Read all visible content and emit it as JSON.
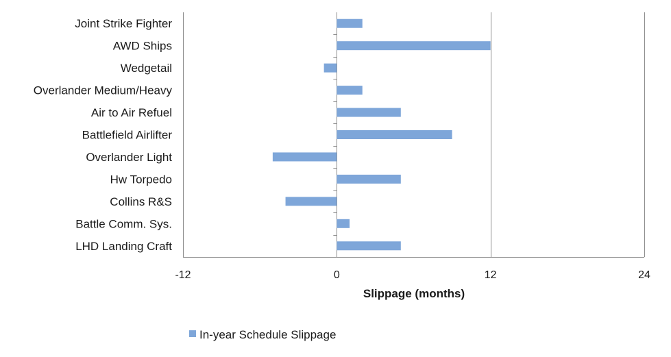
{
  "chart_data": {
    "type": "bar",
    "orientation": "horizontal",
    "categories": [
      "Joint Strike Fighter",
      "AWD Ships",
      "Wedgetail",
      "Overlander Medium/Heavy",
      "Air to Air Refuel",
      "Battlefield Airlifter",
      "Overlander Light",
      "Hw Torpedo",
      "Collins R&S",
      "Battle Comm. Sys.",
      "LHD Landing Craft"
    ],
    "series": [
      {
        "name": "In-year Schedule Slippage",
        "values": [
          2,
          12,
          -1,
          2,
          5,
          9,
          -5,
          5,
          -4,
          1,
          5
        ],
        "color": "#7ea6d9"
      }
    ],
    "xlabel": "Slippage (months)",
    "xlim": [
      -12,
      24
    ],
    "xticks": [
      -12,
      0,
      12,
      24
    ],
    "grid": "vertical major",
    "legend": "bottom"
  }
}
